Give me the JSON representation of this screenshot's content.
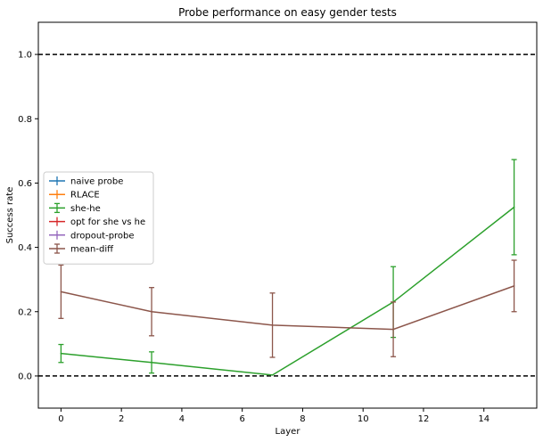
{
  "chart_data": {
    "type": "line",
    "title": "Probe performance on easy gender tests",
    "xlabel": "Layer",
    "ylabel": "Success rate",
    "xlim": [
      -0.75,
      15.75
    ],
    "ylim": [
      -0.1,
      1.1
    ],
    "xticks": [
      0,
      2,
      4,
      6,
      8,
      10,
      12,
      14
    ],
    "yticks": [
      0.0,
      0.2,
      0.4,
      0.6,
      0.8,
      1.0
    ],
    "grid": false,
    "legend_position": "center-left",
    "reference_lines": [
      0.0,
      1.0
    ],
    "series": [
      {
        "name": "naive probe",
        "color": "#1f77b4",
        "x": [],
        "y": [],
        "err": []
      },
      {
        "name": "RLACE",
        "color": "#ff7f0e",
        "x": [],
        "y": [],
        "err": []
      },
      {
        "name": "she-he",
        "color": "#2ca02c",
        "x": [
          0,
          3,
          7,
          11,
          15
        ],
        "y": [
          0.07,
          0.042,
          0.003,
          0.23,
          0.525
        ],
        "err": [
          0.028,
          0.033,
          0.0,
          0.11,
          0.148
        ]
      },
      {
        "name": "opt for she vs he",
        "color": "#d62728",
        "x": [],
        "y": [],
        "err": []
      },
      {
        "name": "dropout-probe",
        "color": "#9467bd",
        "x": [],
        "y": [],
        "err": []
      },
      {
        "name": "mean-diff",
        "color": "#8c564b",
        "x": [
          0,
          3,
          7,
          11,
          15
        ],
        "y": [
          0.262,
          0.2,
          0.158,
          0.145,
          0.28
        ],
        "err": [
          0.083,
          0.075,
          0.1,
          0.085,
          0.08
        ]
      }
    ]
  }
}
